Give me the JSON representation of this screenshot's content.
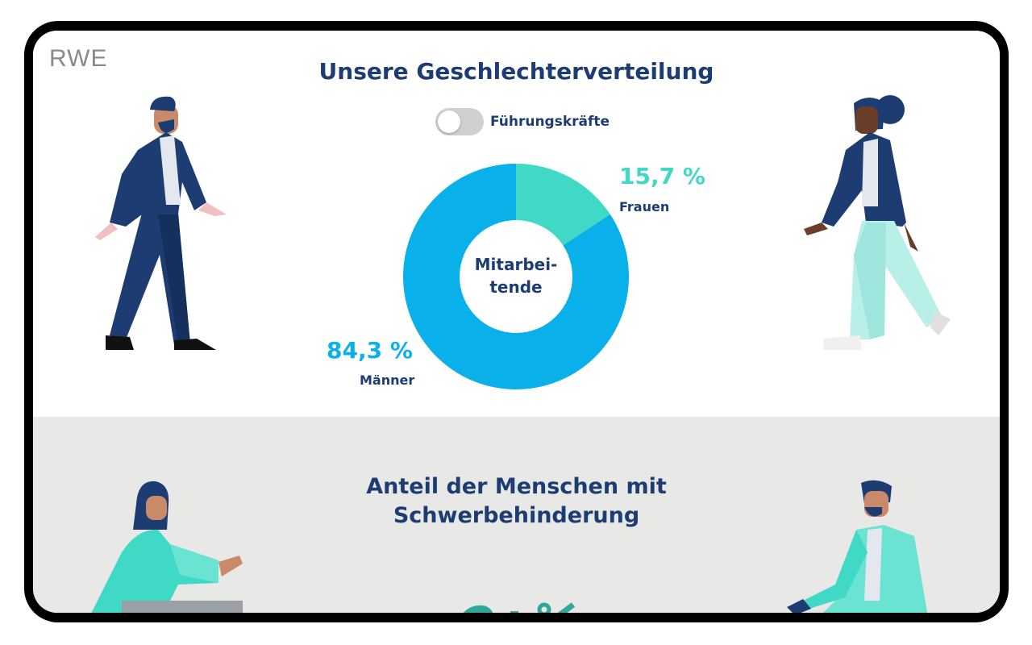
{
  "logo": "RWE",
  "gender": {
    "title": "Unsere Geschlechterverteilung",
    "toggle_label": "Führungskräfte",
    "toggle_on": false,
    "center_label_line1": "Mitarbei-",
    "center_label_line2": "tende",
    "colors": {
      "frauen": "#3fd9c6",
      "maenner": "#09b0ea"
    }
  },
  "chart_data": {
    "type": "pie",
    "categories": [
      "Frauen",
      "Männer"
    ],
    "values": [
      15.7,
      84.3
    ],
    "value_labels": [
      "15,7 %",
      "84,3 %"
    ],
    "category_labels": [
      "Frauen",
      "Männer"
    ]
  },
  "disability": {
    "title_line1": "Anteil der Menschen mit",
    "title_line2": "Schwerbehinderung"
  },
  "icons": [
    "man-walking-illustration",
    "woman-walking-illustration",
    "woman-sitting-illustration",
    "man-sitting-illustration"
  ]
}
